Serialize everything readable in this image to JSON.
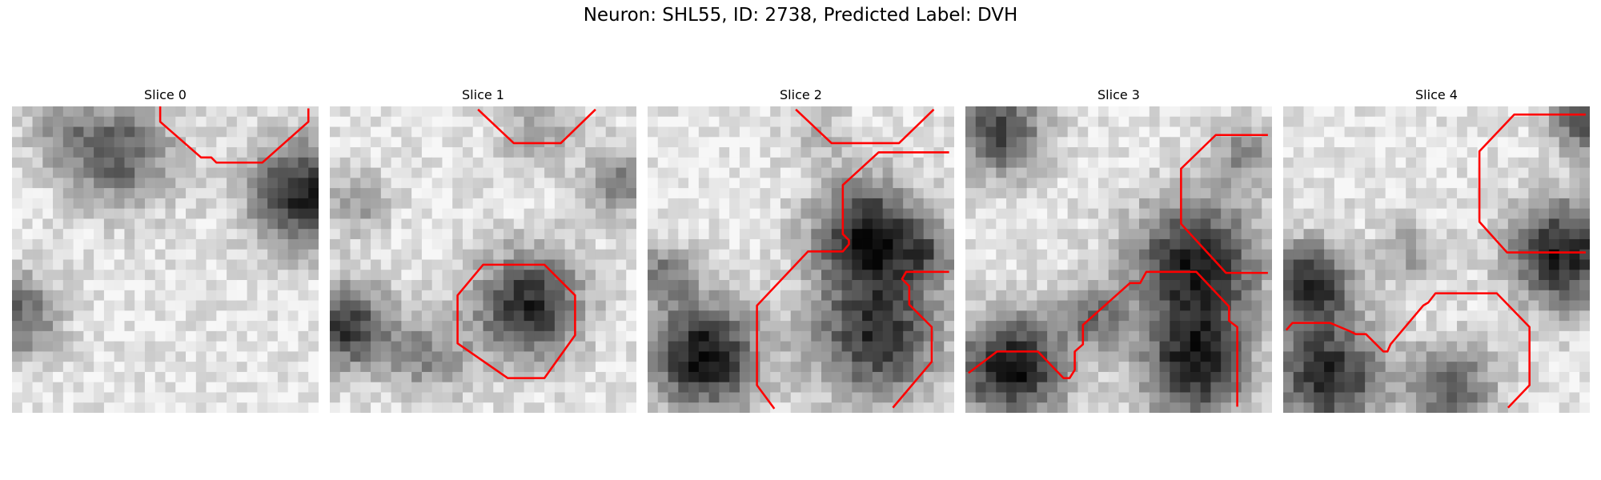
{
  "figure": {
    "title": "Neuron: SHL55, ID: 2738, Predicted Label: DVH",
    "colors": {
      "contour": "#ff0000",
      "background": "#ffffff"
    },
    "panels": [
      {
        "label": "Slice 0"
      },
      {
        "label": "Slice 1"
      },
      {
        "label": "Slice 2"
      },
      {
        "label": "Slice 3"
      },
      {
        "label": "Slice 4"
      }
    ]
  }
}
